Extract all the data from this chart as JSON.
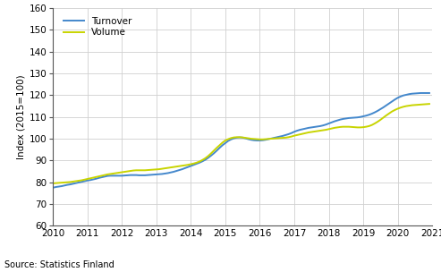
{
  "ylabel": "Index (2015=100)",
  "source": "Source: Statistics Finland",
  "turnover_color": "#4488cc",
  "volume_color": "#c8d400",
  "background_color": "#ffffff",
  "grid_color": "#d0d0d0",
  "xlim": [
    2010,
    2021
  ],
  "ylim": [
    60,
    160
  ],
  "yticks": [
    60,
    70,
    80,
    90,
    100,
    110,
    120,
    130,
    140,
    150,
    160
  ],
  "xticks": [
    2010,
    2011,
    2012,
    2013,
    2014,
    2015,
    2016,
    2017,
    2018,
    2019,
    2020,
    2021
  ],
  "x": [
    2010.0,
    2010.083,
    2010.167,
    2010.25,
    2010.333,
    2010.417,
    2010.5,
    2010.583,
    2010.667,
    2010.75,
    2010.833,
    2010.917,
    2011.0,
    2011.083,
    2011.167,
    2011.25,
    2011.333,
    2011.417,
    2011.5,
    2011.583,
    2011.667,
    2011.75,
    2011.833,
    2011.917,
    2012.0,
    2012.083,
    2012.167,
    2012.25,
    2012.333,
    2012.417,
    2012.5,
    2012.583,
    2012.667,
    2012.75,
    2012.833,
    2012.917,
    2013.0,
    2013.083,
    2013.167,
    2013.25,
    2013.333,
    2013.417,
    2013.5,
    2013.583,
    2013.667,
    2013.75,
    2013.833,
    2013.917,
    2014.0,
    2014.083,
    2014.167,
    2014.25,
    2014.333,
    2014.417,
    2014.5,
    2014.583,
    2014.667,
    2014.75,
    2014.833,
    2014.917,
    2015.0,
    2015.083,
    2015.167,
    2015.25,
    2015.333,
    2015.417,
    2015.5,
    2015.583,
    2015.667,
    2015.75,
    2015.833,
    2015.917,
    2016.0,
    2016.083,
    2016.167,
    2016.25,
    2016.333,
    2016.417,
    2016.5,
    2016.583,
    2016.667,
    2016.75,
    2016.833,
    2016.917,
    2017.0,
    2017.083,
    2017.167,
    2017.25,
    2017.333,
    2017.417,
    2017.5,
    2017.583,
    2017.667,
    2017.75,
    2017.833,
    2017.917,
    2018.0,
    2018.083,
    2018.167,
    2018.25,
    2018.333,
    2018.417,
    2018.5,
    2018.583,
    2018.667,
    2018.75,
    2018.833,
    2018.917,
    2019.0,
    2019.083,
    2019.167,
    2019.25,
    2019.333,
    2019.417,
    2019.5,
    2019.583,
    2019.667,
    2019.75,
    2019.833,
    2019.917,
    2020.0,
    2020.083,
    2020.167,
    2020.25,
    2020.333,
    2020.417,
    2020.5,
    2020.583,
    2020.667,
    2020.75,
    2020.833,
    2020.917
  ],
  "turnover": [
    77.5,
    77.8,
    78.0,
    78.2,
    78.5,
    78.8,
    79.0,
    79.3,
    79.6,
    79.9,
    80.2,
    80.5,
    80.8,
    81.0,
    81.3,
    81.6,
    82.0,
    82.3,
    82.6,
    82.9,
    83.0,
    83.0,
    83.0,
    83.0,
    83.0,
    83.1,
    83.2,
    83.3,
    83.3,
    83.3,
    83.2,
    83.2,
    83.2,
    83.3,
    83.4,
    83.5,
    83.6,
    83.7,
    83.8,
    84.0,
    84.2,
    84.5,
    84.8,
    85.2,
    85.6,
    86.0,
    86.5,
    87.0,
    87.5,
    88.0,
    88.5,
    89.0,
    89.6,
    90.3,
    91.2,
    92.2,
    93.3,
    94.5,
    95.8,
    97.0,
    98.0,
    99.0,
    99.7,
    100.2,
    100.5,
    100.6,
    100.5,
    100.2,
    99.8,
    99.5,
    99.3,
    99.2,
    99.2,
    99.3,
    99.5,
    99.8,
    100.1,
    100.4,
    100.7,
    101.0,
    101.3,
    101.7,
    102.1,
    102.6,
    103.2,
    103.7,
    104.1,
    104.4,
    104.7,
    105.0,
    105.2,
    105.4,
    105.6,
    105.8,
    106.1,
    106.5,
    107.0,
    107.5,
    108.0,
    108.4,
    108.8,
    109.1,
    109.3,
    109.5,
    109.6,
    109.7,
    109.8,
    110.0,
    110.3,
    110.6,
    111.0,
    111.5,
    112.1,
    112.8,
    113.6,
    114.4,
    115.3,
    116.2,
    117.1,
    118.0,
    118.8,
    119.4,
    119.9,
    120.2,
    120.5,
    120.7,
    120.8,
    120.9,
    121.0,
    121.0,
    121.0,
    121.0
  ],
  "volume": [
    79.5,
    79.6,
    79.7,
    79.8,
    79.9,
    80.0,
    80.1,
    80.3,
    80.5,
    80.7,
    80.9,
    81.2,
    81.5,
    81.8,
    82.1,
    82.4,
    82.7,
    83.0,
    83.3,
    83.6,
    83.8,
    84.0,
    84.2,
    84.4,
    84.6,
    84.8,
    85.0,
    85.2,
    85.4,
    85.5,
    85.5,
    85.5,
    85.5,
    85.6,
    85.7,
    85.8,
    85.9,
    86.0,
    86.2,
    86.4,
    86.6,
    86.8,
    87.0,
    87.2,
    87.4,
    87.6,
    87.8,
    88.0,
    88.3,
    88.6,
    89.0,
    89.5,
    90.2,
    91.0,
    92.0,
    93.2,
    94.5,
    95.8,
    97.0,
    98.2,
    99.2,
    99.8,
    100.3,
    100.6,
    100.7,
    100.7,
    100.6,
    100.4,
    100.2,
    100.0,
    99.9,
    99.8,
    99.7,
    99.7,
    99.8,
    99.9,
    100.0,
    100.1,
    100.2,
    100.3,
    100.4,
    100.5,
    100.7,
    101.0,
    101.4,
    101.7,
    102.0,
    102.3,
    102.6,
    102.9,
    103.1,
    103.3,
    103.5,
    103.7,
    103.9,
    104.1,
    104.4,
    104.7,
    105.0,
    105.2,
    105.4,
    105.5,
    105.5,
    105.5,
    105.4,
    105.3,
    105.2,
    105.2,
    105.3,
    105.5,
    105.8,
    106.3,
    107.0,
    107.8,
    108.7,
    109.7,
    110.7,
    111.6,
    112.5,
    113.2,
    113.8,
    114.3,
    114.7,
    115.0,
    115.2,
    115.4,
    115.5,
    115.6,
    115.7,
    115.8,
    115.9,
    116.0
  ]
}
